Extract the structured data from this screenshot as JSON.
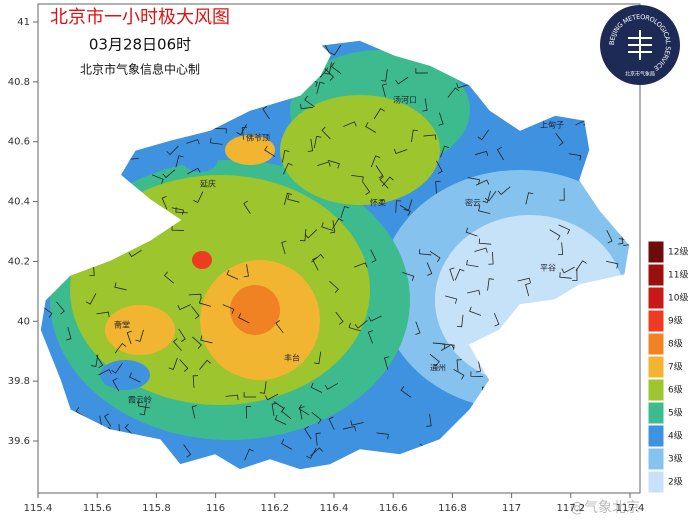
{
  "header": {
    "title": "北京市一小时极大风图",
    "time": "03月28日06时",
    "producer": "北京市气象信息中心制"
  },
  "logo": {
    "ring_text": "BEIJING METEOROLOGICAL SERVICE",
    "name": "北京市气象局"
  },
  "map": {
    "lon_ticks": [
      115.4,
      115.6,
      115.8,
      116,
      116.2,
      116.4,
      116.6,
      116.8,
      117,
      117.2,
      117.4
    ],
    "lat_ticks": [
      41,
      40.8,
      40.6,
      40.4,
      40.2,
      40,
      39.8,
      39.6
    ],
    "places": [
      "汤河口",
      "佛爷顶",
      "上甸子",
      "密云",
      "怀柔",
      "平谷",
      "斋堂",
      "霞云岭",
      "丰台",
      "通州",
      "延庆"
    ]
  },
  "legend": [
    {
      "label": "12级",
      "color": "#6e0b0b"
    },
    {
      "label": "11级",
      "color": "#9c0f0f"
    },
    {
      "label": "10级",
      "color": "#c81818"
    },
    {
      "label": "9级",
      "color": "#ec3c22"
    },
    {
      "label": "8级",
      "color": "#f08224"
    },
    {
      "label": "7级",
      "color": "#f2b531"
    },
    {
      "label": "6级",
      "color": "#9cc52e"
    },
    {
      "label": "5级",
      "color": "#3dbb8f"
    },
    {
      "label": "4级",
      "color": "#3f92df"
    },
    {
      "label": "3级",
      "color": "#86c2ee"
    },
    {
      "label": "2级",
      "color": "#c6e2f8"
    }
  ],
  "watermark": "@气象北京"
}
